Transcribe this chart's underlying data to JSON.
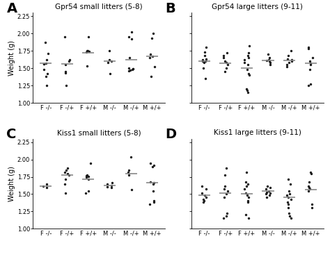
{
  "panels": [
    {
      "label": "A",
      "title": "Gpr54 small litters (5-8)",
      "categories": [
        "F -/-",
        "F -/+",
        "F +/+",
        "M -/-",
        "M -/+",
        "M +/+"
      ],
      "means": [
        1.57,
        1.56,
        1.72,
        1.6,
        1.62,
        1.67
      ],
      "data": [
        [
          1.87,
          1.71,
          1.62,
          1.57,
          1.56,
          1.56,
          1.48,
          1.42,
          1.38,
          1.25
        ],
        [
          1.95,
          1.62,
          1.6,
          1.55,
          1.45,
          1.43,
          1.25
        ],
        [
          1.95,
          1.75,
          1.75,
          1.74,
          1.73,
          1.53
        ],
        [
          1.75,
          1.62,
          1.6,
          1.58,
          1.42
        ],
        [
          2.02,
          1.95,
          1.92,
          1.65,
          1.5,
          1.49,
          1.49,
          1.48,
          1.47,
          1.46
        ],
        [
          2.0,
          1.93,
          1.7,
          1.67,
          1.65,
          1.52,
          1.38
        ]
      ]
    },
    {
      "label": "B",
      "title": "Gpr54 large litters (9-11)",
      "categories": [
        "F -/-",
        "F -/+",
        "F +/+",
        "M -/-",
        "M -/+",
        "M +/+"
      ],
      "means": [
        1.6,
        1.57,
        1.5,
        1.61,
        1.61,
        1.57
      ],
      "data": [
        [
          1.8,
          1.73,
          1.68,
          1.63,
          1.62,
          1.6,
          1.6,
          1.58,
          1.5,
          1.35
        ],
        [
          1.72,
          1.68,
          1.65,
          1.6,
          1.58,
          1.55,
          1.5,
          1.45
        ],
        [
          1.82,
          1.72,
          1.68,
          1.65,
          1.62,
          1.58,
          1.55,
          1.48,
          1.42,
          1.4,
          1.2,
          1.18,
          1.15
        ],
        [
          1.7,
          1.65,
          1.62,
          1.61,
          1.6,
          1.58,
          1.55
        ],
        [
          1.75,
          1.68,
          1.63,
          1.62,
          1.6,
          1.58,
          1.55,
          1.52
        ],
        [
          1.8,
          1.78,
          1.65,
          1.6,
          1.57,
          1.55,
          1.48,
          1.27,
          1.25
        ]
      ]
    },
    {
      "label": "C",
      "title": "Kiss1 small litters (5-8)",
      "categories": [
        "F -/-",
        "F -/+",
        "F +/+",
        "M -/-",
        "M -/+",
        "M +/+"
      ],
      "means": [
        1.62,
        1.78,
        1.72,
        1.63,
        1.8,
        1.67
      ],
      "data": [
        [
          1.65,
          1.62,
          1.6
        ],
        [
          1.88,
          1.85,
          1.82,
          1.8,
          1.78,
          1.72,
          1.65,
          1.52
        ],
        [
          1.95,
          1.78,
          1.77,
          1.76,
          1.75,
          1.72,
          1.55,
          1.52
        ],
        [
          1.67,
          1.65,
          1.63,
          1.61,
          1.6
        ],
        [
          2.04,
          1.85,
          1.82,
          1.78,
          1.57
        ],
        [
          1.95,
          1.92,
          1.9,
          1.68,
          1.67,
          1.65,
          1.55,
          1.4,
          1.38,
          1.35
        ]
      ]
    },
    {
      "label": "D",
      "title": "Kiss1 large litters (9-11)",
      "categories": [
        "F -/-",
        "F -/+",
        "F +/+",
        "M -/-",
        "M -/+",
        "M +/+"
      ],
      "means": [
        1.48,
        1.52,
        1.5,
        1.55,
        1.45,
        1.57
      ],
      "data": [
        [
          1.62,
          1.58,
          1.52,
          1.48,
          1.45,
          1.42,
          1.4,
          1.38
        ],
        [
          1.88,
          1.78,
          1.62,
          1.58,
          1.55,
          1.5,
          1.45,
          1.22,
          1.18,
          1.15
        ],
        [
          1.82,
          1.68,
          1.65,
          1.62,
          1.58,
          1.52,
          1.48,
          1.45,
          1.4,
          1.38,
          1.2,
          1.15
        ],
        [
          1.62,
          1.6,
          1.58,
          1.55,
          1.53,
          1.52,
          1.5,
          1.48,
          1.45
        ],
        [
          1.72,
          1.65,
          1.55,
          1.5,
          1.48,
          1.45,
          1.42,
          1.38,
          1.35,
          1.3,
          1.22,
          1.18,
          1.15
        ],
        [
          1.82,
          1.8,
          1.68,
          1.62,
          1.6,
          1.58,
          1.55,
          1.35,
          1.3
        ]
      ]
    }
  ],
  "ylim": [
    1.0,
    2.3
  ],
  "yticks": [
    1.0,
    1.25,
    1.5,
    1.75,
    2.0,
    2.25
  ],
  "ylabel": "Weight (g)",
  "dot_color": "#1a1a1a",
  "mean_color": "#888888",
  "dot_size": 6,
  "mean_linewidth": 1.2,
  "label_fontsize": 14,
  "title_fontsize": 7.5,
  "tick_fontsize": 6,
  "ylabel_fontsize": 7,
  "background_color": "#ffffff"
}
